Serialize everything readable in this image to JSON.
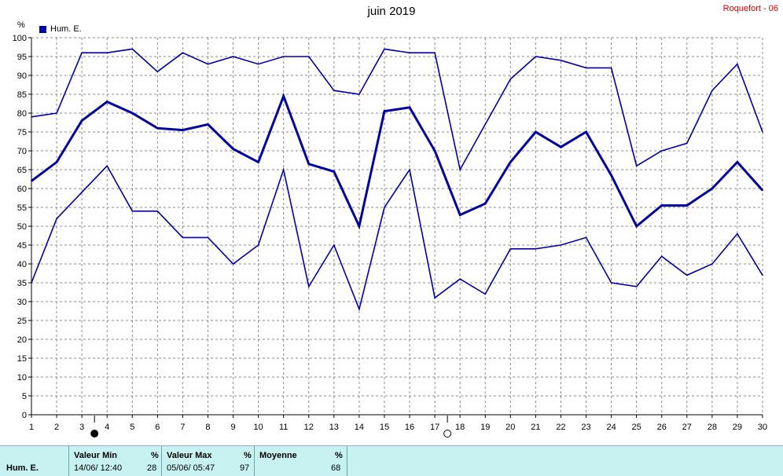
{
  "header": {
    "title": "juin 2019",
    "station": "Roquefort - 06"
  },
  "legend": {
    "label": "Hum. E.",
    "color": "#0000a0"
  },
  "axis": {
    "unit": "%"
  },
  "chart_data": {
    "type": "line",
    "title": "juin 2019",
    "xlabel": "",
    "ylabel": "%",
    "xlim": [
      1,
      30
    ],
    "ylim": [
      0,
      100
    ],
    "grid": true,
    "legend_position": "top-left",
    "x": [
      1,
      2,
      3,
      4,
      5,
      6,
      7,
      8,
      9,
      10,
      11,
      12,
      13,
      14,
      15,
      16,
      17,
      18,
      19,
      20,
      21,
      22,
      23,
      24,
      25,
      26,
      27,
      28,
      29,
      30
    ],
    "x_ticks": [
      "1",
      "2",
      "3",
      "4",
      "5",
      "6",
      "7",
      "8",
      "9",
      "10",
      "11",
      "12",
      "13",
      "14",
      "15",
      "16",
      "17",
      "18",
      "19",
      "20",
      "21",
      "22",
      "23",
      "24",
      "25",
      "26",
      "27",
      "28",
      "29",
      "30"
    ],
    "y_ticks": [
      0,
      5,
      10,
      15,
      20,
      25,
      30,
      35,
      40,
      45,
      50,
      55,
      60,
      65,
      70,
      75,
      80,
      85,
      90,
      95,
      100
    ],
    "series": [
      {
        "name": "Hum. E.",
        "role": "max",
        "color": "#0000a0",
        "values": [
          79,
          80,
          96,
          96,
          97,
          91,
          96,
          93,
          95,
          93,
          95,
          95,
          86,
          85,
          97,
          96,
          96,
          65,
          77,
          89,
          95,
          94,
          92,
          92,
          66,
          70,
          72,
          86,
          93,
          75
        ]
      },
      {
        "name": "Hum. E.",
        "role": "mean",
        "color": "#0000a0",
        "values": [
          62,
          67,
          78,
          83,
          80,
          76,
          75.5,
          77,
          70.5,
          67,
          84.5,
          66.5,
          64.5,
          50,
          80.5,
          81.5,
          70,
          53,
          56,
          67,
          75,
          71,
          75,
          63.5,
          50,
          55.5,
          55.5,
          60,
          67,
          59.5
        ]
      },
      {
        "name": "Hum. E.",
        "role": "min",
        "color": "#0000a0",
        "values": [
          35,
          52,
          59,
          66,
          54,
          54,
          47,
          47,
          40,
          45,
          65,
          34,
          45,
          28,
          55,
          65,
          31,
          36,
          32,
          44,
          44,
          45,
          47,
          35,
          34,
          42,
          37,
          40,
          48,
          37
        ]
      }
    ],
    "moon_phases": [
      {
        "day": 3.5,
        "phase": "new"
      },
      {
        "day": 17.5,
        "phase": "full"
      }
    ]
  },
  "summary": {
    "row_label": "Hum. E.",
    "min": {
      "label": "Valeur Min",
      "unit": "%",
      "when": "14/06/  12:40",
      "value": "28"
    },
    "max": {
      "label": "Valeur Max",
      "unit": "%",
      "when": "05/06/  05:47",
      "value": "97"
    },
    "avg": {
      "label": "Moyenne",
      "unit": "%",
      "value": "68"
    }
  }
}
